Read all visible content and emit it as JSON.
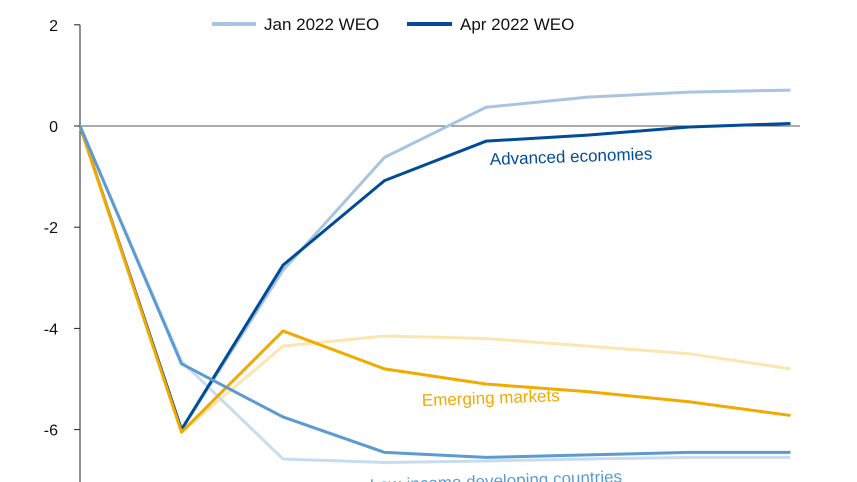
{
  "chart_data": {
    "type": "line",
    "title": "",
    "xlabel": "",
    "ylabel": "",
    "ylim": [
      -7,
      2
    ],
    "yticks": [
      "2",
      "0",
      "-2",
      "-4",
      "-6"
    ],
    "ytick_values": [
      2,
      0,
      -2,
      -4,
      -6
    ],
    "grid": false,
    "zero_line": true,
    "legend_position": "top",
    "legend": [
      {
        "name": "Jan 2022 WEO",
        "color": "#a9c4e0"
      },
      {
        "name": "Apr 2022 WEO",
        "color": "#004c97"
      }
    ],
    "x": [
      0,
      1,
      2,
      3,
      4,
      5,
      6,
      7
    ],
    "groups": [
      {
        "label": "Advanced economies",
        "label_color": "#004c97",
        "series": [
          {
            "vintage": "Jan 2022 WEO",
            "color": "#a9c4e0",
            "values": [
              0,
              -6.0,
              -2.85,
              -0.62,
              0.37,
              0.57,
              0.67,
              0.71
            ]
          },
          {
            "vintage": "Apr 2022 WEO",
            "color": "#004c97",
            "values": [
              0,
              -6.0,
              -2.75,
              -1.08,
              -0.3,
              -0.18,
              -0.02,
              0.05
            ]
          }
        ]
      },
      {
        "label": "Emerging markets",
        "label_color": "#f2a900",
        "series": [
          {
            "vintage": "Jan 2022 WEO",
            "color": "#fbe6b0",
            "values": [
              0,
              -6.05,
              -4.35,
              -4.15,
              -4.2,
              -4.35,
              -4.5,
              -4.8
            ]
          },
          {
            "vintage": "Apr 2022 WEO",
            "color": "#f2a900",
            "values": [
              0,
              -6.05,
              -4.05,
              -4.8,
              -5.1,
              -5.25,
              -5.45,
              -5.72
            ]
          }
        ]
      },
      {
        "label": "Low-income developing countries",
        "label_color": "#5b9bd1",
        "series": [
          {
            "vintage": "Jan 2022 WEO",
            "color": "#c9dcef",
            "values": [
              0,
              -4.65,
              -6.58,
              -6.65,
              -6.62,
              -6.58,
              -6.55,
              -6.55
            ]
          },
          {
            "vintage": "Apr 2022 WEO",
            "color": "#5b9bd1",
            "values": [
              0,
              -4.7,
              -5.75,
              -6.45,
              -6.55,
              -6.5,
              -6.45,
              -6.45
            ]
          }
        ]
      }
    ]
  }
}
